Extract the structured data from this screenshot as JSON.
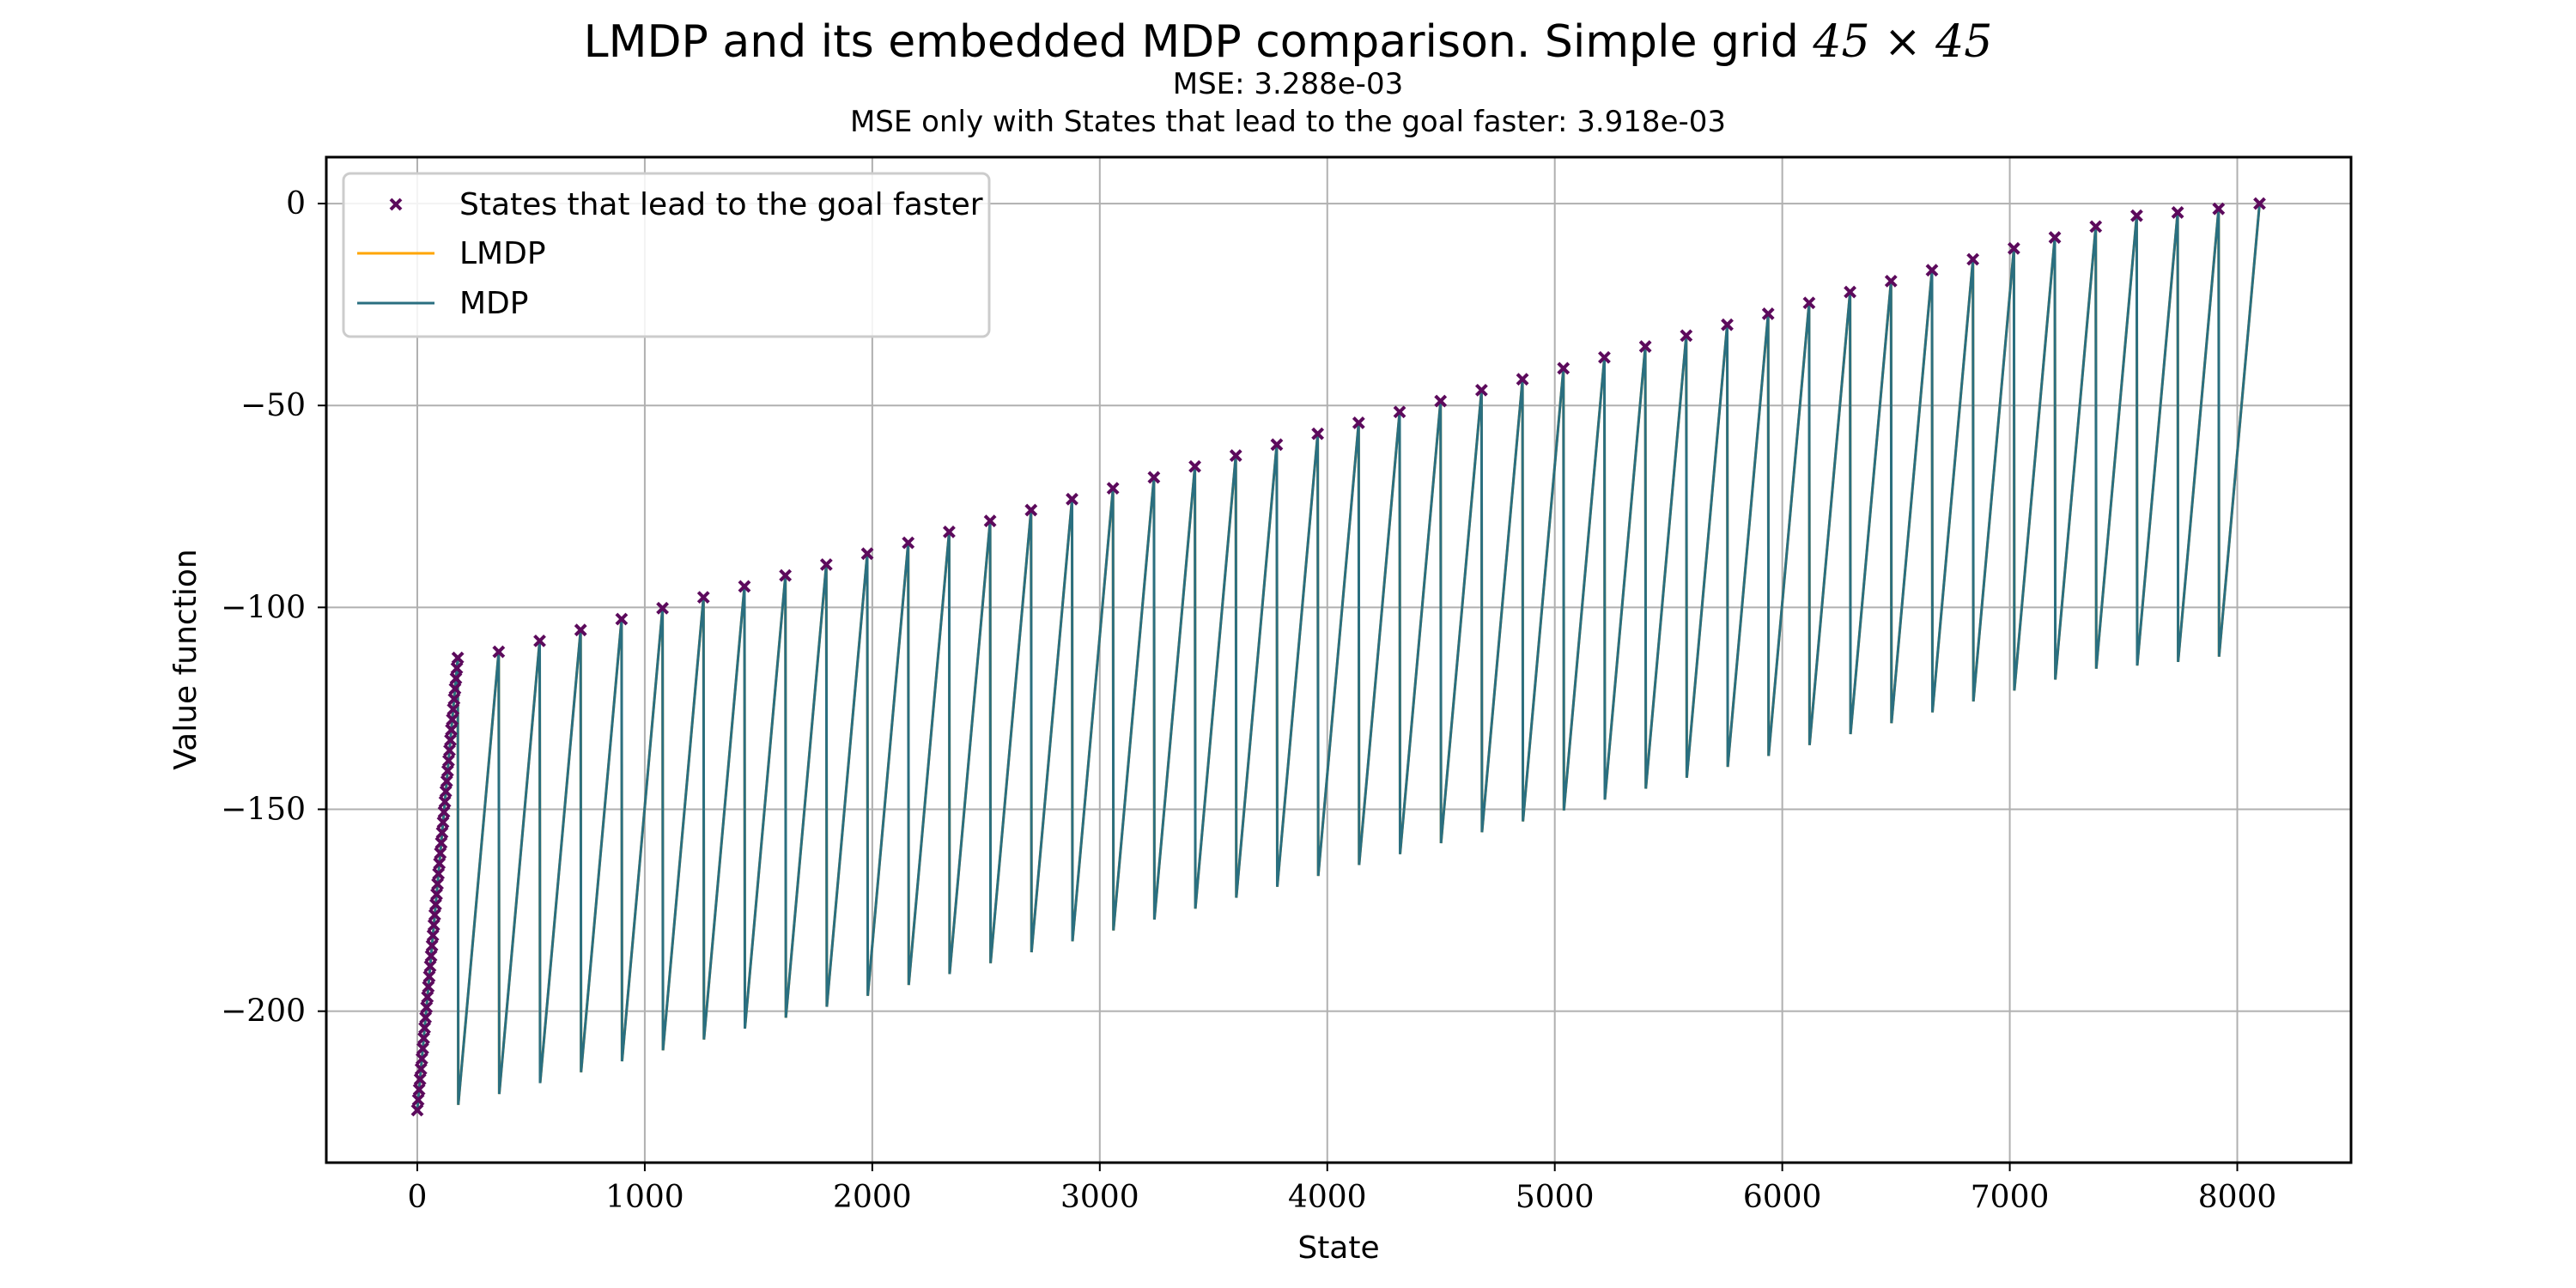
{
  "chart_data": {
    "type": "line",
    "title": {
      "main": "LMDP and its embedded MDP comparison. Simple grid ",
      "math": "45 × 45",
      "line2": "MSE: 3.288e-03",
      "line3": "MSE only with States that lead to the goal faster: 3.918e-03"
    },
    "xlabel": "State",
    "ylabel": "Value function",
    "xlim": [
      -400,
      8500
    ],
    "ylim": [
      -237.5,
      11.5
    ],
    "xticks": [
      0,
      1000,
      2000,
      3000,
      4000,
      5000,
      6000,
      7000,
      8000
    ],
    "yticks": [
      0,
      -50,
      -100,
      -150,
      -200
    ],
    "ytick_labels": [
      "0",
      "−50",
      "−100",
      "−150",
      "−200"
    ],
    "grid": true,
    "legend": {
      "placement": "top-left",
      "entries": [
        {
          "label": "States that lead to the goal faster",
          "kind": "marker",
          "color": "#5c0a5c"
        },
        {
          "label": "LMDP",
          "kind": "line",
          "color": "#ffa500"
        },
        {
          "label": "MDP",
          "kind": "line",
          "color": "#2a6f80"
        }
      ]
    },
    "series": [
      {
        "name": "MDP",
        "color": "#2a6f80",
        "kind": "sawtooth",
        "grid_size": 45,
        "actions": 4,
        "block_states": 180,
        "start_value": -224.5,
        "block_rise": 112.2,
        "block_step": 2.72,
        "end_state": 8099,
        "goal_value": 0
      },
      {
        "name": "LMDP",
        "color": "#ffa500",
        "kind": "sawtooth-overlay"
      },
      {
        "name": "States that lead to the goal faster",
        "color": "#5c0a5c",
        "kind": "scatter",
        "marker": "x",
        "peak_states": [
          358,
          538,
          718,
          898,
          1078,
          1258,
          1438,
          1618,
          1798,
          1978,
          2158,
          2338,
          2518,
          2698,
          2878,
          3058,
          3238,
          3418,
          3598,
          3778,
          3958,
          4138,
          4318,
          4498,
          4678,
          4858,
          5038,
          5218,
          5398,
          5578,
          5758,
          5938,
          6118,
          6298,
          6478,
          6658,
          6838,
          7018,
          7198,
          7378,
          7558,
          7738,
          7918,
          8098
        ],
        "peak_values": [
          -111.0,
          -108.3,
          -105.6,
          -102.9,
          -100.2,
          -97.5,
          -94.8,
          -92.1,
          -89.4,
          -86.7,
          -84.0,
          -81.3,
          -78.6,
          -75.9,
          -73.2,
          -70.5,
          -67.8,
          -65.1,
          -62.4,
          -59.7,
          -57.0,
          -54.3,
          -51.6,
          -48.9,
          -46.2,
          -43.5,
          -40.8,
          -38.1,
          -35.4,
          -32.7,
          -30.0,
          -27.3,
          -24.6,
          -21.9,
          -19.2,
          -16.5,
          -13.8,
          -11.1,
          -8.4,
          -5.7,
          -3.0,
          -2.2,
          -1.3,
          0.0
        ],
        "cluster_x_range": [
          0,
          178
        ],
        "cluster_y_range": [
          -224.5,
          -112.5
        ],
        "cluster_count": 45
      }
    ]
  }
}
